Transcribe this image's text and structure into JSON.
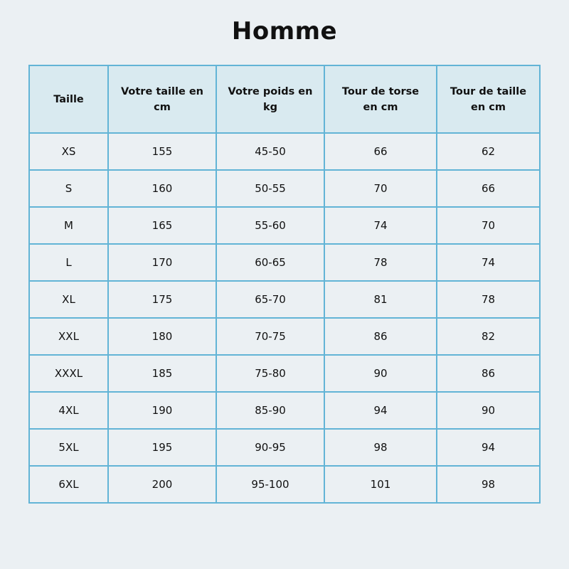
{
  "title": "Homme",
  "table": {
    "headers": [
      "Taille",
      "Votre taille en cm",
      "Votre poids en kg",
      "Tour de torse en cm",
      "Tour de taille en cm"
    ],
    "rows": [
      [
        "XS",
        "155",
        "45-50",
        "66",
        "62"
      ],
      [
        "S",
        "160",
        "50-55",
        "70",
        "66"
      ],
      [
        "M",
        "165",
        "55-60",
        "74",
        "70"
      ],
      [
        "L",
        "170",
        "60-65",
        "78",
        "74"
      ],
      [
        "XL",
        "175",
        "65-70",
        "81",
        "78"
      ],
      [
        "XXL",
        "180",
        "70-75",
        "86",
        "82"
      ],
      [
        "XXXL",
        "185",
        "75-80",
        "90",
        "86"
      ],
      [
        "4XL",
        "190",
        "85-90",
        "94",
        "90"
      ],
      [
        "5XL",
        "195",
        "90-95",
        "98",
        "94"
      ],
      [
        "6XL",
        "200",
        "95-100",
        "101",
        "98"
      ]
    ]
  },
  "colors": {
    "border": "#62b4d6",
    "header_bg": "#d9eaf0",
    "page_bg": "#ebf0f3"
  }
}
